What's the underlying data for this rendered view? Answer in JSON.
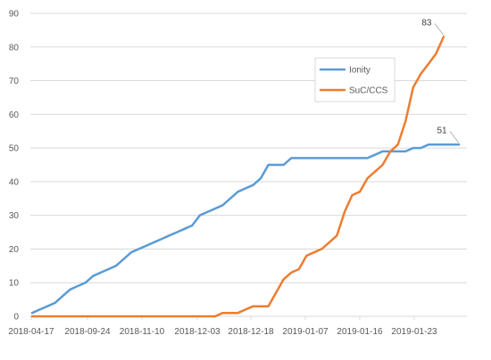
{
  "chart_data": {
    "type": "line",
    "title": "",
    "xlabel": "",
    "ylabel": "",
    "ylim": [
      0,
      90
    ],
    "y_ticks": [
      0,
      10,
      20,
      30,
      40,
      50,
      60,
      70,
      80,
      90
    ],
    "grid": true,
    "legend_position": "top-right",
    "x_tick_labels": [
      "2018-04-17",
      "2018-09-24",
      "2018-11-10",
      "2018-12-03",
      "2018-12-18",
      "2019-01-07",
      "2019-01-16",
      "2019-01-23"
    ],
    "series": [
      {
        "name": "Ionity",
        "color": "#5b9bd5",
        "end_label": "51",
        "values": [
          1,
          2,
          3,
          4,
          6,
          8,
          9,
          10,
          12,
          13,
          14,
          15,
          17,
          19,
          20,
          21,
          22,
          23,
          24,
          25,
          26,
          27,
          30,
          31,
          32,
          33,
          35,
          37,
          38,
          39,
          41,
          45,
          45,
          45,
          47,
          47,
          47,
          47,
          47,
          47,
          47,
          47,
          47,
          47,
          47,
          48,
          49,
          49,
          49,
          49,
          50,
          50,
          51,
          51,
          51,
          51,
          51
        ]
      },
      {
        "name": "SuC/CCS",
        "color": "#ed7d31",
        "end_label": "83",
        "values": [
          0,
          0,
          0,
          0,
          0,
          0,
          0,
          0,
          0,
          0,
          0,
          0,
          0,
          0,
          0,
          0,
          0,
          0,
          0,
          0,
          0,
          0,
          0,
          0,
          0,
          1,
          1,
          1,
          2,
          3,
          3,
          3,
          7,
          11,
          13,
          14,
          18,
          19,
          20,
          22,
          24,
          31,
          36,
          37,
          41,
          43,
          45,
          49,
          51,
          58,
          68,
          72,
          75,
          78,
          83
        ]
      }
    ]
  }
}
